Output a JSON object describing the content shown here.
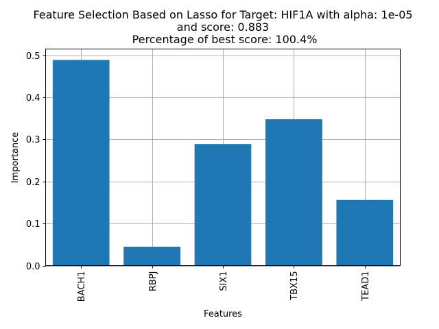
{
  "chart_data": {
    "type": "bar",
    "title_lines": [
      "Feature Selection Based on Lasso for Target: HIF1A with alpha: 1e-05",
      "and score: 0.883",
      " Percentage of best score: 100.4%"
    ],
    "xlabel": "Features",
    "ylabel": "Importance",
    "categories": [
      "BACH1",
      "RBPJ",
      "SIX1",
      "TBX15",
      "TEAD1"
    ],
    "values": [
      0.489,
      0.045,
      0.289,
      0.348,
      0.156
    ],
    "ylim": [
      0,
      0.515
    ],
    "yticks": [
      "0.0",
      "0.1",
      "0.2",
      "0.3",
      "0.4",
      "0.5"
    ],
    "grid": true,
    "colors": {
      "bar": "#1f77b4",
      "grid": "#b0b0b0",
      "axis": "#000000"
    }
  }
}
